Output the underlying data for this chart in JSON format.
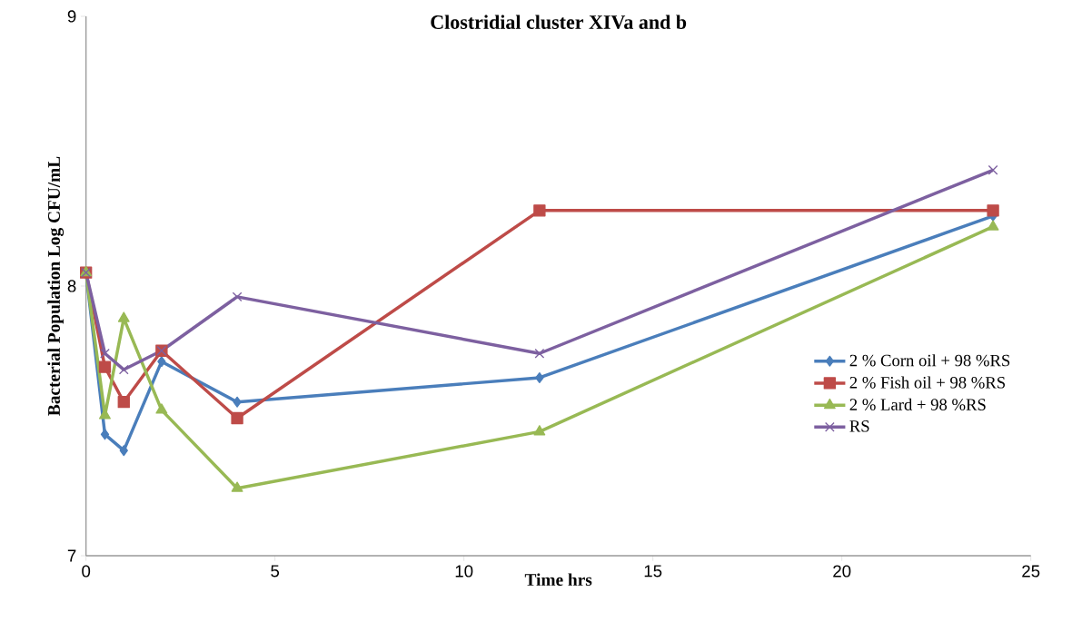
{
  "chart_data": {
    "type": "line",
    "title": "Clostridial cluster XIVa and b",
    "xlabel": "Time hrs",
    "ylabel": "Bacterial Population Log CFU/mL",
    "x": [
      0,
      0.5,
      1,
      2,
      4,
      12,
      24
    ],
    "series": [
      {
        "name": "2 % Corn oil + 98 %RS",
        "color": "#4a7ebb",
        "marker": "diamond",
        "values": [
          8.05,
          7.45,
          7.39,
          7.72,
          7.57,
          7.66,
          8.26
        ]
      },
      {
        "name": "2 % Fish oil + 98 %RS",
        "color": "#be4b48",
        "marker": "square",
        "values": [
          8.05,
          7.7,
          7.57,
          7.76,
          7.51,
          8.28,
          8.28
        ]
      },
      {
        "name": "2 % Lard + 98 %RS",
        "color": "#98b954",
        "marker": "triangle",
        "values": [
          8.05,
          7.52,
          7.88,
          7.54,
          7.25,
          7.46,
          8.22
        ]
      },
      {
        "name": "RS",
        "color": "#7d60a0",
        "marker": "cross",
        "values": [
          8.05,
          7.75,
          7.69,
          7.76,
          7.96,
          7.75,
          8.43
        ]
      }
    ],
    "xlim": [
      0,
      25
    ],
    "xticks": [
      0,
      5,
      10,
      15,
      20,
      25
    ],
    "ylim": [
      7,
      9
    ],
    "yticks": [
      7,
      8,
      9
    ],
    "grid": false,
    "legend": "right",
    "line_style": "solid"
  }
}
